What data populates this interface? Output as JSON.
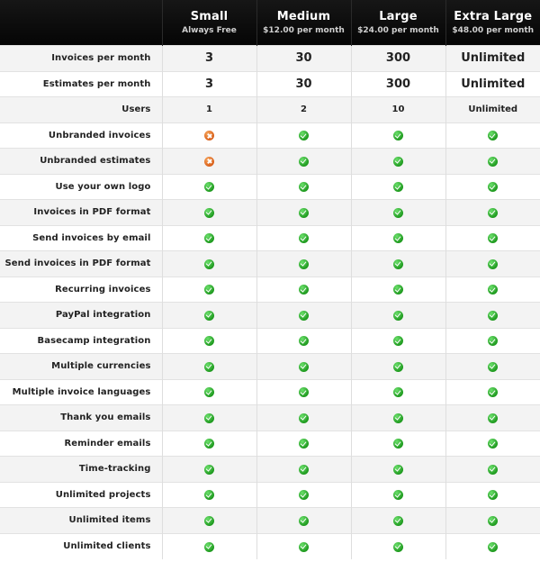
{
  "plans": [
    {
      "name": "Small",
      "price": "Always Free"
    },
    {
      "name": "Medium",
      "price": "$12.00 per month"
    },
    {
      "name": "Large",
      "price": "$24.00 per month"
    },
    {
      "name": "Extra Large",
      "price": "$48.00 per month"
    }
  ],
  "colors": {
    "header_bg": "#0b0b0b",
    "check": "#2aaa2a",
    "cross": "#e06a22",
    "row_alt": "#f3f3f3"
  },
  "rows": [
    {
      "label": "Invoices per month",
      "style": "big",
      "values": [
        "3",
        "30",
        "300",
        "Unlimited"
      ]
    },
    {
      "label": "Estimates per month",
      "style": "big",
      "values": [
        "3",
        "30",
        "300",
        "Unlimited"
      ]
    },
    {
      "label": "Users",
      "style": "small",
      "values": [
        "1",
        "2",
        "10",
        "Unlimited"
      ]
    },
    {
      "label": "Unbranded invoices",
      "style": "icon",
      "values": [
        "no",
        "yes",
        "yes",
        "yes"
      ]
    },
    {
      "label": "Unbranded estimates",
      "style": "icon",
      "values": [
        "no",
        "yes",
        "yes",
        "yes"
      ]
    },
    {
      "label": "Use your own logo",
      "style": "icon",
      "values": [
        "yes",
        "yes",
        "yes",
        "yes"
      ]
    },
    {
      "label": "Invoices in PDF format",
      "style": "icon",
      "values": [
        "yes",
        "yes",
        "yes",
        "yes"
      ]
    },
    {
      "label": "Send invoices by email",
      "style": "icon",
      "values": [
        "yes",
        "yes",
        "yes",
        "yes"
      ]
    },
    {
      "label": "Send invoices in PDF format",
      "style": "icon",
      "values": [
        "yes",
        "yes",
        "yes",
        "yes"
      ]
    },
    {
      "label": "Recurring invoices",
      "style": "icon",
      "values": [
        "yes",
        "yes",
        "yes",
        "yes"
      ]
    },
    {
      "label": "PayPal integration",
      "style": "icon",
      "values": [
        "yes",
        "yes",
        "yes",
        "yes"
      ]
    },
    {
      "label": "Basecamp integration",
      "style": "icon",
      "values": [
        "yes",
        "yes",
        "yes",
        "yes"
      ]
    },
    {
      "label": "Multiple currencies",
      "style": "icon",
      "values": [
        "yes",
        "yes",
        "yes",
        "yes"
      ]
    },
    {
      "label": "Multiple invoice languages",
      "style": "icon",
      "values": [
        "yes",
        "yes",
        "yes",
        "yes"
      ]
    },
    {
      "label": "Thank you emails",
      "style": "icon",
      "values": [
        "yes",
        "yes",
        "yes",
        "yes"
      ]
    },
    {
      "label": "Reminder emails",
      "style": "icon",
      "values": [
        "yes",
        "yes",
        "yes",
        "yes"
      ]
    },
    {
      "label": "Time-tracking",
      "style": "icon",
      "values": [
        "yes",
        "yes",
        "yes",
        "yes"
      ]
    },
    {
      "label": "Unlimited projects",
      "style": "icon",
      "values": [
        "yes",
        "yes",
        "yes",
        "yes"
      ]
    },
    {
      "label": "Unlimited items",
      "style": "icon",
      "values": [
        "yes",
        "yes",
        "yes",
        "yes"
      ]
    },
    {
      "label": "Unlimited clients",
      "style": "icon",
      "values": [
        "yes",
        "yes",
        "yes",
        "yes"
      ]
    }
  ]
}
